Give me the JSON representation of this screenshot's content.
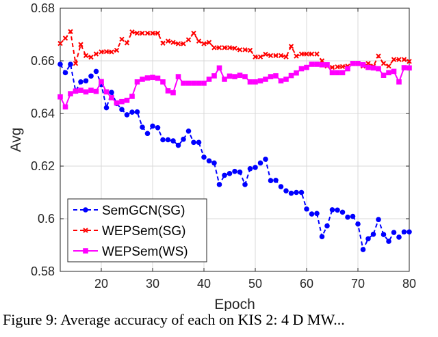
{
  "chart_data": {
    "type": "line",
    "title": "",
    "xlabel": "Epoch",
    "ylabel": "Avg",
    "xlim": [
      12,
      80
    ],
    "ylim": [
      0.58,
      0.68
    ],
    "xticks": [
      20,
      30,
      40,
      50,
      60,
      70,
      80
    ],
    "yticks": [
      0.58,
      0.6,
      0.62,
      0.64,
      0.66,
      0.68
    ],
    "ytick_labels": [
      "0.58",
      "0.6",
      "0.62",
      "0.64",
      "0.66",
      "0.68"
    ],
    "grid": true,
    "legend_position": "bottom-left",
    "x": [
      12,
      13,
      14,
      15,
      16,
      17,
      18,
      19,
      20,
      21,
      22,
      23,
      24,
      25,
      26,
      27,
      28,
      29,
      30,
      31,
      32,
      33,
      34,
      35,
      36,
      37,
      38,
      39,
      40,
      41,
      42,
      43,
      44,
      45,
      46,
      47,
      48,
      49,
      50,
      51,
      52,
      53,
      54,
      55,
      56,
      57,
      58,
      59,
      60,
      61,
      62,
      63,
      64,
      65,
      66,
      67,
      68,
      69,
      70,
      71,
      72,
      73,
      74,
      75,
      76,
      77,
      78,
      79,
      80
    ],
    "series": [
      {
        "name": "SemGCN(SG)",
        "color": "#0000ff",
        "marker": "circle",
        "values": [
          0.6587,
          0.6555,
          0.6587,
          0.6485,
          0.652,
          0.6524,
          0.6542,
          0.656,
          0.651,
          0.6422,
          0.648,
          0.6438,
          0.6415,
          0.6395,
          0.6405,
          0.6406,
          0.6348,
          0.6324,
          0.6352,
          0.6346,
          0.63,
          0.63,
          0.6296,
          0.6279,
          0.6302,
          0.6333,
          0.629,
          0.629,
          0.6234,
          0.622,
          0.6212,
          0.613,
          0.6165,
          0.6172,
          0.618,
          0.6177,
          0.613,
          0.619,
          0.6195,
          0.6212,
          0.6226,
          0.6145,
          0.6146,
          0.6122,
          0.6106,
          0.6097,
          0.61,
          0.61,
          0.6037,
          0.6018,
          0.602,
          0.5932,
          0.5973,
          0.6034,
          0.6033,
          0.6025,
          0.6006,
          0.6009,
          0.598,
          0.5883,
          0.5924,
          0.5941,
          0.5997,
          0.594,
          0.5914,
          0.5948,
          0.593,
          0.595,
          0.595
        ]
      },
      {
        "name": "WEPSem(SG)",
        "color": "#ff0000",
        "marker": "x",
        "values": [
          0.6666,
          0.6686,
          0.6711,
          0.659,
          0.6662,
          0.662,
          0.6614,
          0.6626,
          0.6634,
          0.6635,
          0.6634,
          0.664,
          0.6682,
          0.6668,
          0.671,
          0.6705,
          0.6705,
          0.6705,
          0.6705,
          0.6705,
          0.6667,
          0.6675,
          0.667,
          0.6665,
          0.6665,
          0.668,
          0.6705,
          0.6675,
          0.6665,
          0.667,
          0.665,
          0.665,
          0.665,
          0.665,
          0.6648,
          0.6642,
          0.6642,
          0.664,
          0.6615,
          0.6615,
          0.6625,
          0.662,
          0.662,
          0.662,
          0.6615,
          0.6655,
          0.6618,
          0.6626,
          0.6626,
          0.6626,
          0.6626,
          0.66,
          0.658,
          0.6575,
          0.6577,
          0.6578,
          0.658,
          0.659,
          0.659,
          0.658,
          0.659,
          0.658,
          0.6618,
          0.659,
          0.658,
          0.6605,
          0.6605,
          0.6605,
          0.6598
        ]
      },
      {
        "name": "WEPSem(WS)",
        "color": "#ff00ff",
        "marker": "square",
        "values": [
          0.6463,
          0.6425,
          0.6475,
          0.6485,
          0.6488,
          0.6482,
          0.6488,
          0.6484,
          0.6521,
          0.6482,
          0.646,
          0.644,
          0.6445,
          0.645,
          0.6465,
          0.652,
          0.653,
          0.6535,
          0.6537,
          0.6534,
          0.652,
          0.6486,
          0.6479,
          0.654,
          0.6515,
          0.6515,
          0.6515,
          0.6515,
          0.6515,
          0.653,
          0.6543,
          0.6573,
          0.653,
          0.6542,
          0.654,
          0.6545,
          0.654,
          0.652,
          0.652,
          0.6524,
          0.653,
          0.654,
          0.6543,
          0.6524,
          0.653,
          0.6544,
          0.6554,
          0.657,
          0.6575,
          0.6587,
          0.6587,
          0.6585,
          0.6585,
          0.6555,
          0.6555,
          0.6555,
          0.657,
          0.659,
          0.659,
          0.6585,
          0.6575,
          0.6573,
          0.657,
          0.6545,
          0.6555,
          0.656,
          0.652,
          0.6574,
          0.6573
        ]
      }
    ]
  },
  "caption": "Figure 9: Average accuracy of each on KIS 2: 4 D MW..."
}
